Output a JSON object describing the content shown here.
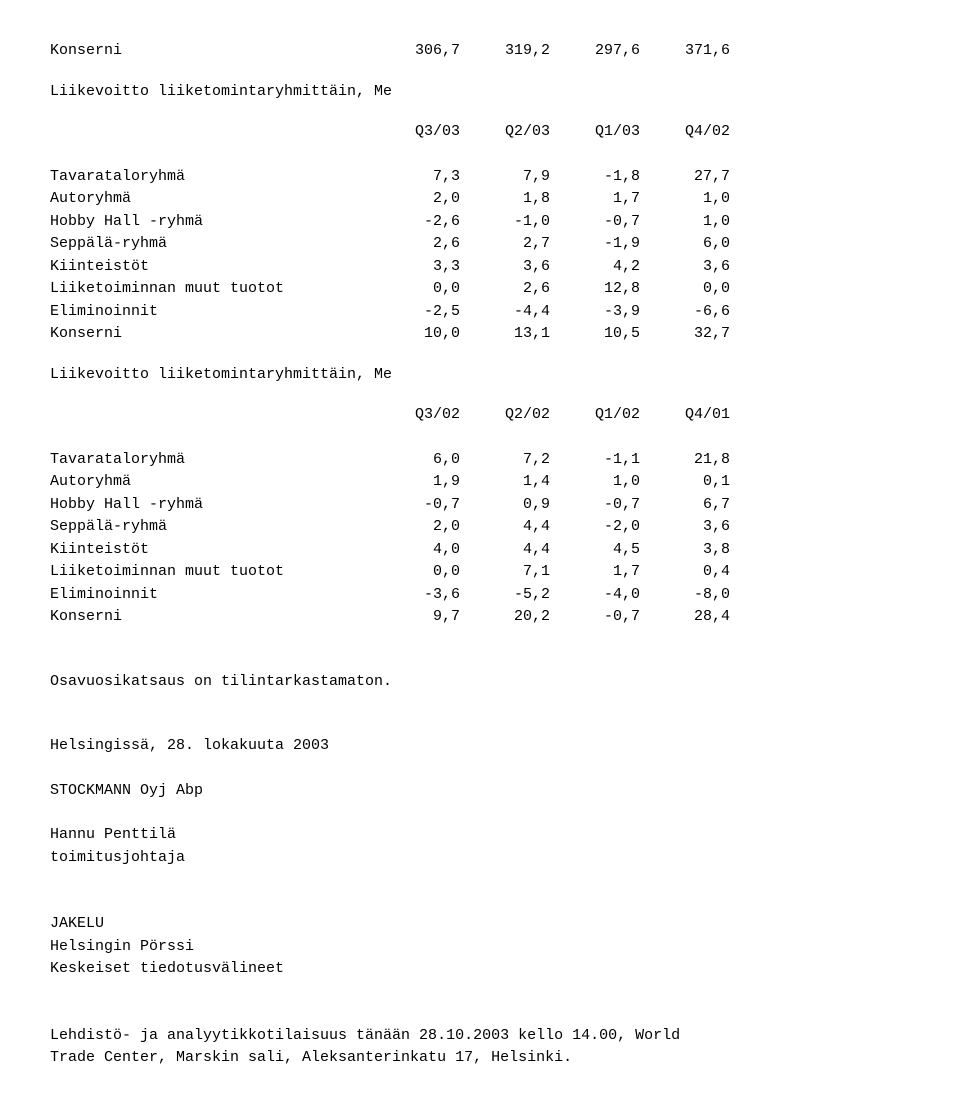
{
  "table1": {
    "top_row": {
      "label": "Konserni",
      "vals": [
        "306,7",
        "319,2",
        "297,6",
        "371,6"
      ]
    },
    "title": "Liikevoitto liiketomintaryhmittäin, Me",
    "headers": [
      "Q3/03",
      "Q2/03",
      "Q1/03",
      "Q4/02"
    ],
    "rows": [
      {
        "label": "Tavarataloryhmä",
        "vals": [
          "7,3",
          "7,9",
          "-1,8",
          "27,7"
        ]
      },
      {
        "label": "Autoryhmä",
        "vals": [
          "2,0",
          "1,8",
          "1,7",
          "1,0"
        ]
      },
      {
        "label": "Hobby Hall -ryhmä",
        "vals": [
          "-2,6",
          "-1,0",
          "-0,7",
          "1,0"
        ]
      },
      {
        "label": "Seppälä-ryhmä",
        "vals": [
          "2,6",
          "2,7",
          "-1,9",
          "6,0"
        ]
      },
      {
        "label": "Kiinteistöt",
        "vals": [
          "3,3",
          "3,6",
          "4,2",
          "3,6"
        ]
      },
      {
        "label": "Liiketoiminnan muut tuotot",
        "vals": [
          "0,0",
          "2,6",
          "12,8",
          "0,0"
        ]
      },
      {
        "label": "Eliminoinnit",
        "vals": [
          "-2,5",
          "-4,4",
          "-3,9",
          "-6,6"
        ]
      },
      {
        "label": "Konserni",
        "vals": [
          "10,0",
          "13,1",
          "10,5",
          "32,7"
        ]
      }
    ]
  },
  "table2": {
    "title": "Liikevoitto liiketomintaryhmittäin, Me",
    "headers": [
      "Q3/02",
      "Q2/02",
      "Q1/02",
      "Q4/01"
    ],
    "rows": [
      {
        "label": "Tavarataloryhmä",
        "vals": [
          "6,0",
          "7,2",
          "-1,1",
          "21,8"
        ]
      },
      {
        "label": "Autoryhmä",
        "vals": [
          "1,9",
          "1,4",
          "1,0",
          "0,1"
        ]
      },
      {
        "label": "Hobby Hall -ryhmä",
        "vals": [
          "-0,7",
          "0,9",
          "-0,7",
          "6,7"
        ]
      },
      {
        "label": "Seppälä-ryhmä",
        "vals": [
          "2,0",
          "4,4",
          "-2,0",
          "3,6"
        ]
      },
      {
        "label": "Kiinteistöt",
        "vals": [
          "4,0",
          "4,4",
          "4,5",
          "3,8"
        ]
      },
      {
        "label": "Liiketoiminnan muut tuotot",
        "vals": [
          "0,0",
          "7,1",
          "1,7",
          "0,4"
        ]
      },
      {
        "label": "Eliminoinnit",
        "vals": [
          "-3,6",
          "-5,2",
          "-4,0",
          "-8,0"
        ]
      },
      {
        "label": "Konserni",
        "vals": [
          "9,7",
          "20,2",
          "-0,7",
          "28,4"
        ]
      }
    ]
  },
  "footer": {
    "p1": "Osavuosikatsaus on tilintarkastamaton.",
    "p2": "Helsingissä, 28. lokakuuta 2003",
    "p3": "STOCKMANN Oyj Abp",
    "p4a": "Hannu Penttilä",
    "p4b": "toimitusjohtaja",
    "p5a": "JAKELU",
    "p5b": "Helsingin Pörssi",
    "p5c": "Keskeiset tiedotusvälineet",
    "p6a": "Lehdistö- ja analyytikkotilaisuus tänään 28.10.2003 kello 14.00, World",
    "p6b": "Trade Center, Marskin sali, Aleksanterinkatu 17, Helsinki."
  }
}
